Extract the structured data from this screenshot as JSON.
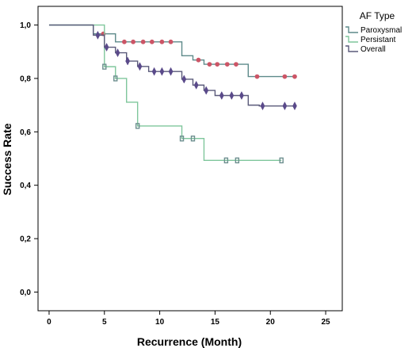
{
  "chart_data": {
    "type": "line",
    "subtype": "kaplan-meier step",
    "xlabel": "Recurrence (Month)",
    "ylabel": "Success Rate",
    "xlim": [
      -1,
      26.5
    ],
    "ylim": [
      -0.07,
      1.07
    ],
    "x_ticks": [
      0,
      5,
      10,
      15,
      20,
      25
    ],
    "x_tick_labels": [
      "0",
      "5",
      "10",
      "15",
      "20",
      "25"
    ],
    "y_ticks": [
      0.0,
      0.2,
      0.4,
      0.6,
      0.8,
      1.0
    ],
    "y_tick_labels": [
      "0,0",
      "0,2",
      "0,4",
      "0,6",
      "0,8",
      "1,0"
    ],
    "grid": false,
    "legend": {
      "title": "AF Type",
      "placement": "top-right, outside plot"
    },
    "series": [
      {
        "name": "Paroxysmal",
        "color": "#5d8a8a",
        "marker_color": "#cc5566",
        "marker": "circle",
        "steps": [
          [
            0,
            1.0
          ],
          [
            4,
            0.967
          ],
          [
            6,
            0.937
          ],
          [
            12,
            0.885
          ],
          [
            13,
            0.869
          ],
          [
            14,
            0.853
          ],
          [
            18,
            0.807
          ],
          [
            22.2,
            0.807
          ]
        ],
        "censored": [
          [
            4.9,
            0.967
          ],
          [
            6.8,
            0.937
          ],
          [
            7.6,
            0.937
          ],
          [
            8.5,
            0.937
          ],
          [
            9.3,
            0.937
          ],
          [
            10.2,
            0.937
          ],
          [
            11,
            0.937
          ],
          [
            13.5,
            0.869
          ],
          [
            14.5,
            0.853
          ],
          [
            15.2,
            0.853
          ],
          [
            16.1,
            0.853
          ],
          [
            16.9,
            0.853
          ],
          [
            18.8,
            0.807
          ],
          [
            21.3,
            0.807
          ],
          [
            22.2,
            0.807
          ]
        ]
      },
      {
        "name": "Persistant",
        "color": "#7fc69c",
        "marker_color": "#6d8f8f",
        "marker": "square",
        "steps": [
          [
            0,
            1.0
          ],
          [
            5,
            0.844
          ],
          [
            6,
            0.8
          ],
          [
            7,
            0.711
          ],
          [
            8,
            0.622
          ],
          [
            12,
            0.575
          ],
          [
            14,
            0.493
          ],
          [
            21,
            0.493
          ]
        ],
        "censored": [
          [
            5,
            0.844
          ],
          [
            6,
            0.8
          ],
          [
            8,
            0.622
          ],
          [
            12,
            0.575
          ],
          [
            13,
            0.575
          ],
          [
            16,
            0.493
          ],
          [
            17,
            0.493
          ],
          [
            21,
            0.493
          ]
        ]
      },
      {
        "name": "Overall",
        "color": "#5a5a7a",
        "marker_color": "#5a4a8a",
        "marker": "diamond",
        "steps": [
          [
            0,
            1.0
          ],
          [
            4,
            0.962
          ],
          [
            5,
            0.917
          ],
          [
            6,
            0.896
          ],
          [
            7,
            0.865
          ],
          [
            8,
            0.845
          ],
          [
            9,
            0.826
          ],
          [
            12,
            0.797
          ],
          [
            13,
            0.775
          ],
          [
            14,
            0.755
          ],
          [
            15,
            0.736
          ],
          [
            18,
            0.7
          ],
          [
            19,
            0.697
          ],
          [
            22.2,
            0.697
          ]
        ],
        "censored": [
          [
            4.4,
            0.962
          ],
          [
            5.2,
            0.917
          ],
          [
            6.2,
            0.896
          ],
          [
            7.1,
            0.865
          ],
          [
            8.2,
            0.845
          ],
          [
            9.5,
            0.826
          ],
          [
            10.2,
            0.826
          ],
          [
            11,
            0.826
          ],
          [
            12.2,
            0.797
          ],
          [
            13.3,
            0.775
          ],
          [
            14.2,
            0.755
          ],
          [
            15.6,
            0.736
          ],
          [
            16.5,
            0.736
          ],
          [
            17.4,
            0.736
          ],
          [
            19.3,
            0.697
          ],
          [
            21.3,
            0.697
          ],
          [
            22.2,
            0.697
          ]
        ]
      }
    ]
  }
}
